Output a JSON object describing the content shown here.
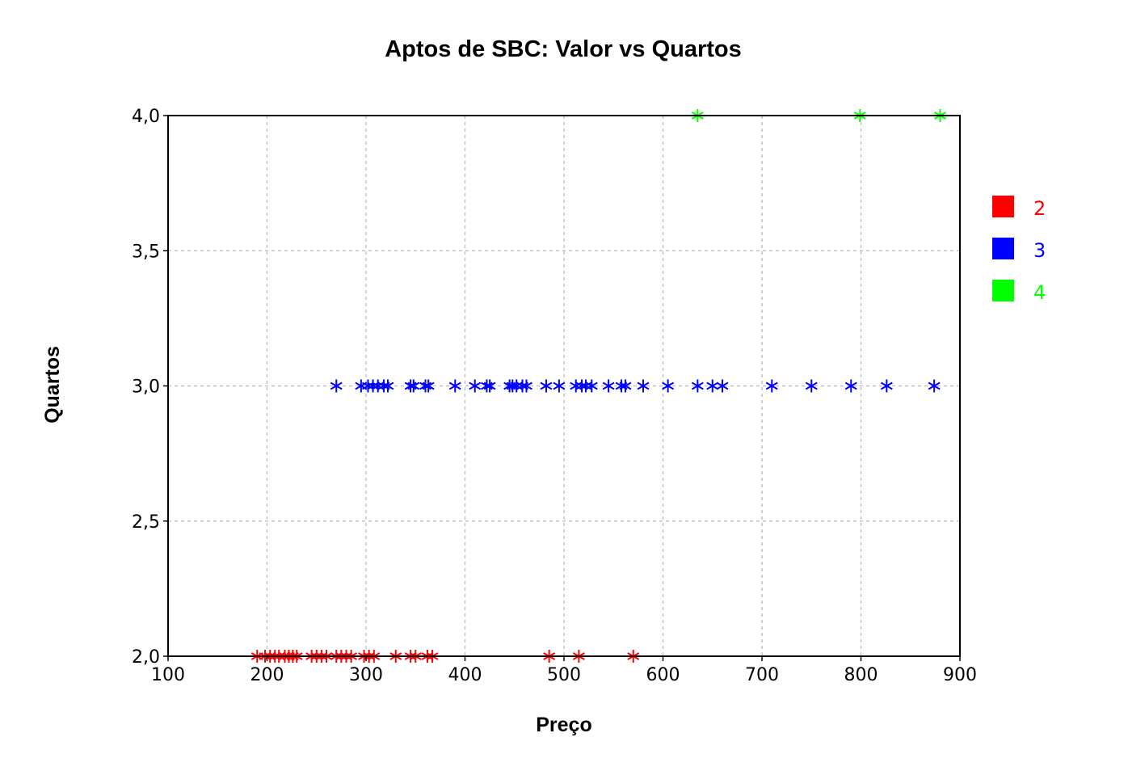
{
  "chart_data": {
    "type": "scatter",
    "title": "Aptos de SBC: Valor vs Quartos",
    "xlabel": "Preço",
    "ylabel": "Quartos",
    "xlim": [
      100,
      900
    ],
    "ylim": [
      2.0,
      4.0
    ],
    "x_ticks": [
      "100",
      "200",
      "300",
      "400",
      "500",
      "600",
      "700",
      "800",
      "900"
    ],
    "y_ticks": [
      "2,0",
      "2,5",
      "3,0",
      "3,5",
      "4,0"
    ],
    "grid": true,
    "marker": "asterisk",
    "legend_position": "right",
    "series": [
      {
        "name": "2",
        "color": "#ff0000",
        "points": [
          [
            190,
            2
          ],
          [
            198,
            2
          ],
          [
            203,
            2
          ],
          [
            208,
            2
          ],
          [
            212,
            2
          ],
          [
            218,
            2
          ],
          [
            222,
            2
          ],
          [
            226,
            2
          ],
          [
            230,
            2
          ],
          [
            245,
            2
          ],
          [
            250,
            2
          ],
          [
            255,
            2
          ],
          [
            260,
            2
          ],
          [
            270,
            2
          ],
          [
            275,
            2
          ],
          [
            280,
            2
          ],
          [
            285,
            2
          ],
          [
            298,
            2
          ],
          [
            303,
            2
          ],
          [
            308,
            2
          ],
          [
            330,
            2
          ],
          [
            345,
            2
          ],
          [
            350,
            2
          ],
          [
            362,
            2
          ],
          [
            367,
            2
          ],
          [
            485,
            2
          ],
          [
            515,
            2
          ],
          [
            570,
            2
          ]
        ]
      },
      {
        "name": "3",
        "color": "#0000ff",
        "points": [
          [
            270,
            3
          ],
          [
            295,
            3
          ],
          [
            302,
            3
          ],
          [
            307,
            3
          ],
          [
            312,
            3
          ],
          [
            318,
            3
          ],
          [
            322,
            3
          ],
          [
            345,
            3
          ],
          [
            348,
            3
          ],
          [
            360,
            3
          ],
          [
            363,
            3
          ],
          [
            390,
            3
          ],
          [
            410,
            3
          ],
          [
            422,
            3
          ],
          [
            425,
            3
          ],
          [
            445,
            3
          ],
          [
            448,
            3
          ],
          [
            452,
            3
          ],
          [
            458,
            3
          ],
          [
            462,
            3
          ],
          [
            482,
            3
          ],
          [
            495,
            3
          ],
          [
            512,
            3
          ],
          [
            518,
            3
          ],
          [
            522,
            3
          ],
          [
            528,
            3
          ],
          [
            545,
            3
          ],
          [
            558,
            3
          ],
          [
            562,
            3
          ],
          [
            580,
            3
          ],
          [
            605,
            3
          ],
          [
            635,
            3
          ],
          [
            650,
            3
          ],
          [
            660,
            3
          ],
          [
            710,
            3
          ],
          [
            750,
            3
          ],
          [
            790,
            3
          ],
          [
            826,
            3
          ],
          [
            874,
            3
          ]
        ]
      },
      {
        "name": "4",
        "color": "#00ff00",
        "points": [
          [
            635,
            4
          ],
          [
            799,
            4
          ],
          [
            880,
            4
          ]
        ]
      }
    ]
  }
}
